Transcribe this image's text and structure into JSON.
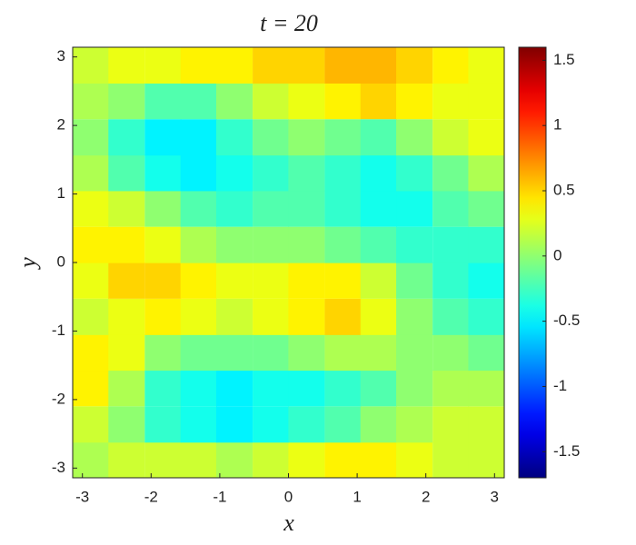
{
  "chart_data": {
    "type": "heatmap",
    "title": "t = 20",
    "x_label": "x",
    "y_label": "y",
    "colormap": "jet",
    "x": [
      -2.88,
      -2.36,
      -1.83,
      -1.31,
      -0.79,
      -0.26,
      0.26,
      0.79,
      1.31,
      1.83,
      2.36,
      2.88
    ],
    "y": [
      -2.88,
      -2.36,
      -1.83,
      -1.31,
      -0.79,
      -0.26,
      0.26,
      0.79,
      1.31,
      1.83,
      2.36,
      2.88
    ],
    "z": [
      [
        0.1,
        0.2,
        0.2,
        0.2,
        0.1,
        0.2,
        0.3,
        0.4,
        0.4,
        0.3,
        0.2,
        0.2
      ],
      [
        0.2,
        0,
        -0.3,
        -0.4,
        -0.5,
        -0.4,
        -0.3,
        -0.2,
        0,
        0.1,
        0.2,
        0.2
      ],
      [
        0.4,
        0.1,
        -0.3,
        -0.4,
        -0.5,
        -0.4,
        -0.4,
        -0.3,
        -0.2,
        0,
        0.1,
        0.1
      ],
      [
        0.4,
        0.3,
        0,
        -0.1,
        -0.1,
        -0.1,
        0,
        0.1,
        0.1,
        0,
        0,
        -0.1
      ],
      [
        0.2,
        0.3,
        0.4,
        0.3,
        0.2,
        0.3,
        0.4,
        0.5,
        0.3,
        0,
        -0.2,
        -0.3
      ],
      [
        0.3,
        0.5,
        0.5,
        0.4,
        0.3,
        0.3,
        0.4,
        0.4,
        0.2,
        -0.1,
        -0.3,
        -0.4
      ],
      [
        0.4,
        0.4,
        0.3,
        0.1,
        0,
        0,
        0,
        -0.1,
        -0.2,
        -0.3,
        -0.3,
        -0.3
      ],
      [
        0.3,
        0.2,
        0,
        -0.2,
        -0.3,
        -0.2,
        -0.2,
        -0.3,
        -0.4,
        -0.4,
        -0.2,
        -0.1
      ],
      [
        0.1,
        -0.2,
        -0.4,
        -0.5,
        -0.4,
        -0.3,
        -0.2,
        -0.3,
        -0.4,
        -0.3,
        -0.1,
        0.1
      ],
      [
        0,
        -0.3,
        -0.5,
        -0.5,
        -0.3,
        -0.1,
        0,
        -0.1,
        -0.2,
        0,
        0.2,
        0.3
      ],
      [
        0.1,
        0,
        -0.2,
        -0.2,
        0,
        0.2,
        0.3,
        0.4,
        0.5,
        0.4,
        0.3,
        0.3
      ],
      [
        0.2,
        0.3,
        0.3,
        0.4,
        0.4,
        0.5,
        0.5,
        0.6,
        0.6,
        0.5,
        0.4,
        0.3
      ]
    ],
    "xlim": [
      -3.14159,
      3.14159
    ],
    "ylim": [
      -3.14159,
      3.14159
    ],
    "xticks": [
      -3,
      -2,
      -1,
      0,
      1,
      2,
      3
    ],
    "yticks": [
      -3,
      -2,
      -1,
      0,
      1,
      2,
      3
    ],
    "clim": [
      -1.7,
      1.6
    ],
    "cticks": [
      -1.5,
      -1,
      -0.5,
      0,
      0.5,
      1,
      1.5
    ]
  }
}
